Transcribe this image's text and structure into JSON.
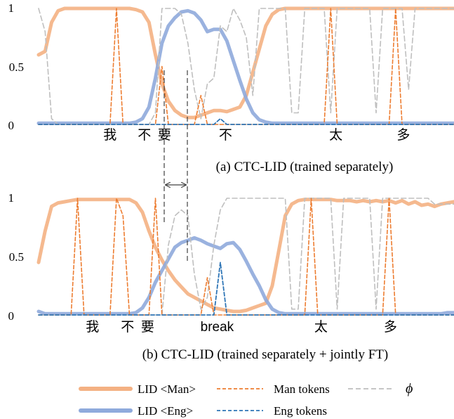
{
  "charts": [
    {
      "id": "a",
      "caption": "(a) CTC-LID (trained separately)",
      "yticks": [
        "1",
        "0.5",
        "0"
      ],
      "tokens": [
        {
          "label": "我",
          "frame": 11,
          "color": "#000000"
        },
        {
          "label": "不",
          "frame": 16.3,
          "color": "#000000"
        },
        {
          "label": "要",
          "frame": 19.4,
          "color": "#000000"
        },
        {
          "label": "不",
          "frame": 28.8,
          "color": "#cc0000"
        },
        {
          "label": "太",
          "frame": 45.8,
          "color": "#000000"
        },
        {
          "label": "多",
          "frame": 56.2,
          "color": "#000000"
        }
      ]
    },
    {
      "id": "b",
      "caption": "(b) CTC-LID (trained separately + jointly FT)",
      "yticks": [
        "1",
        "0.5",
        "0"
      ],
      "tokens": [
        {
          "label": "我",
          "frame": 8.3,
          "color": "#000000"
        },
        {
          "label": "不",
          "frame": 13.7,
          "color": "#000000"
        },
        {
          "label": "要",
          "frame": 16.8,
          "color": "#000000"
        },
        {
          "label": "break",
          "frame": 27.5,
          "color": "#2e75b6"
        },
        {
          "label": "太",
          "frame": 43.5,
          "color": "#000000"
        },
        {
          "label": "多",
          "frame": 54.2,
          "color": "#000000"
        }
      ]
    }
  ],
  "legend": [
    {
      "label": "LID <Man>",
      "color": "#f4b183",
      "style": "thick"
    },
    {
      "label": "Man tokens",
      "color": "#ed7d31",
      "style": "dashed"
    },
    {
      "label": "ϕ",
      "color": "#bfbfbf",
      "style": "dashed"
    },
    {
      "label": "LID <Eng>",
      "color": "#8faadc",
      "style": "thick"
    },
    {
      "label": "Eng tokens",
      "color": "#2e75b6",
      "style": "dashed"
    }
  ],
  "chart_data": [
    {
      "type": "line",
      "x": [
        0,
        1,
        2,
        3,
        4,
        5,
        6,
        7,
        8,
        9,
        10,
        11,
        12,
        13,
        14,
        15,
        16,
        17,
        18,
        19,
        20,
        21,
        22,
        23,
        24,
        25,
        26,
        27,
        28,
        29,
        30,
        31,
        32,
        33,
        34,
        35,
        36,
        37,
        38,
        39,
        40,
        41,
        42,
        43,
        44,
        45,
        46,
        47,
        48,
        49,
        50,
        51,
        52,
        53,
        54,
        55,
        56,
        57,
        58,
        59,
        60,
        61,
        62,
        63,
        64
      ],
      "ylim": [
        0,
        1
      ],
      "series": [
        {
          "name": "LID <Man>",
          "color": "#f4b183",
          "values": [
            0.6,
            0.63,
            0.88,
            0.98,
            1,
            1,
            1,
            1,
            1,
            1,
            1,
            1,
            1,
            1,
            1,
            0.99,
            0.97,
            0.88,
            0.6,
            0.35,
            0.2,
            0.12,
            0.08,
            0.06,
            0.06,
            0.08,
            0.1,
            0.12,
            0.12,
            0.11,
            0.13,
            0.15,
            0.25,
            0.45,
            0.65,
            0.85,
            0.95,
            0.99,
            1,
            1,
            1,
            1,
            1,
            1,
            1,
            1,
            1,
            1,
            1,
            1,
            1,
            1,
            1,
            1,
            1,
            1,
            1,
            1,
            1,
            1,
            1,
            1,
            1,
            1,
            1
          ]
        },
        {
          "name": "LID <Eng>",
          "color": "#8faadc",
          "values": [
            0.01,
            0.01,
            0.01,
            0.01,
            0.01,
            0.01,
            0.01,
            0.01,
            0.01,
            0.01,
            0.01,
            0.01,
            0.01,
            0.01,
            0.01,
            0.02,
            0.05,
            0.15,
            0.4,
            0.7,
            0.85,
            0.92,
            0.97,
            0.98,
            0.96,
            0.9,
            0.8,
            0.82,
            0.82,
            0.72,
            0.55,
            0.38,
            0.22,
            0.1,
            0.04,
            0.02,
            0.01,
            0.01,
            0.01,
            0.01,
            0.01,
            0.01,
            0.01,
            0.01,
            0.01,
            0.01,
            0.01,
            0.01,
            0.01,
            0.01,
            0.01,
            0.01,
            0.01,
            0.01,
            0.01,
            0.01,
            0.01,
            0.01,
            0.01,
            0.01,
            0.01,
            0.01,
            0.01,
            0.01,
            0.01
          ]
        },
        {
          "name": "Man tokens",
          "color": "#ed7d31",
          "values": [
            0,
            0,
            0,
            0,
            0,
            0,
            0,
            0,
            0,
            0,
            0,
            0,
            1,
            0,
            0,
            0,
            0,
            0,
            0,
            0.5,
            0,
            0,
            0,
            0,
            0,
            0.25,
            0,
            0,
            0,
            0,
            0,
            0,
            0,
            0,
            0,
            0,
            0,
            0,
            0,
            0,
            0,
            0,
            0,
            0,
            0,
            1,
            0,
            0,
            0,
            0,
            0,
            0,
            0,
            0,
            0,
            1,
            0,
            0,
            0,
            0,
            0,
            0,
            0,
            0,
            0
          ]
        },
        {
          "name": "Eng tokens",
          "color": "#2e75b6",
          "values": [
            0,
            0,
            0,
            0,
            0,
            0,
            0,
            0,
            0,
            0,
            0,
            0,
            0,
            0,
            0,
            0,
            0,
            0,
            0,
            0,
            0,
            0,
            0,
            0,
            0,
            0,
            0,
            0,
            0.05,
            0,
            0,
            0,
            0,
            0,
            0,
            0,
            0,
            0,
            0,
            0,
            0,
            0,
            0,
            0,
            0,
            0,
            0,
            0,
            0,
            0,
            0,
            0,
            0,
            0,
            0,
            0,
            0,
            0,
            0,
            0,
            0,
            0,
            0,
            0,
            0
          ]
        },
        {
          "name": "ϕ",
          "color": "#bfbfbf",
          "values": [
            1,
            0.8,
            0.05,
            0,
            0,
            0,
            0,
            0,
            0,
            0,
            0,
            0,
            0,
            0,
            0,
            0,
            0,
            0,
            0.1,
            1,
            1,
            1,
            0.95,
            0.7,
            0.3,
            0.05,
            0.35,
            0.4,
            0.85,
            0.8,
            1,
            0.9,
            0.75,
            0.25,
            1,
            1,
            1,
            1,
            1,
            0.1,
            0.1,
            1,
            1,
            1,
            1,
            0.1,
            1,
            1,
            1,
            1,
            1,
            1,
            0.1,
            1,
            1,
            1,
            1,
            0.3,
            1,
            1,
            1,
            1,
            1,
            1,
            1
          ]
        }
      ]
    },
    {
      "type": "line",
      "x": [
        0,
        1,
        2,
        3,
        4,
        5,
        6,
        7,
        8,
        9,
        10,
        11,
        12,
        13,
        14,
        15,
        16,
        17,
        18,
        19,
        20,
        21,
        22,
        23,
        24,
        25,
        26,
        27,
        28,
        29,
        30,
        31,
        32,
        33,
        34,
        35,
        36,
        37,
        38,
        39,
        40,
        41,
        42,
        43,
        44,
        45,
        46,
        47,
        48,
        49,
        50,
        51,
        52,
        53,
        54,
        55,
        56,
        57,
        58,
        59,
        60,
        61,
        62,
        63,
        64
      ],
      "ylim": [
        0,
        1
      ],
      "series": [
        {
          "name": "LID <Man>",
          "color": "#f4b183",
          "values": [
            0.45,
            0.72,
            0.93,
            0.96,
            0.97,
            0.98,
            0.99,
            0.99,
            0.99,
            0.99,
            0.99,
            0.99,
            0.99,
            0.99,
            0.99,
            0.96,
            0.88,
            0.72,
            0.58,
            0.47,
            0.38,
            0.3,
            0.24,
            0.18,
            0.15,
            0.12,
            0.09,
            0.06,
            0.05,
            0.04,
            0.03,
            0.03,
            0.04,
            0.06,
            0.08,
            0.1,
            0.25,
            0.55,
            0.85,
            0.95,
            0.98,
            0.99,
            0.99,
            0.99,
            0.99,
            0.99,
            0.98,
            0.98,
            0.98,
            0.97,
            0.98,
            0.97,
            0.98,
            0.97,
            0.98,
            0.96,
            0.98,
            0.95,
            0.97,
            0.94,
            0.95,
            0.93,
            0.95,
            0.96,
            0.97
          ]
        },
        {
          "name": "LID <Eng>",
          "color": "#8faadc",
          "values": [
            0.03,
            0.01,
            0.01,
            0.01,
            0.01,
            0.01,
            0.01,
            0.01,
            0.01,
            0.01,
            0.01,
            0.01,
            0.01,
            0.01,
            0.01,
            0.02,
            0.06,
            0.15,
            0.28,
            0.38,
            0.48,
            0.58,
            0.62,
            0.64,
            0.66,
            0.64,
            0.61,
            0.59,
            0.57,
            0.61,
            0.62,
            0.56,
            0.46,
            0.35,
            0.25,
            0.13,
            0.05,
            0.02,
            0.01,
            0.01,
            0.01,
            0.01,
            0.01,
            0.01,
            0.01,
            0.01,
            0.01,
            0.01,
            0.01,
            0.01,
            0.01,
            0.01,
            0.01,
            0.01,
            0.01,
            0.01,
            0.01,
            0.01,
            0.01,
            0.01,
            0.01,
            0.01,
            0.01,
            0.02,
            0.02
          ]
        },
        {
          "name": "Man tokens",
          "color": "#ed7d31",
          "values": [
            0,
            0,
            0,
            0,
            0,
            0,
            1,
            0,
            0,
            0,
            0,
            0,
            1,
            0.85,
            0,
            0,
            0,
            0,
            1,
            0,
            0,
            0,
            0,
            0,
            0,
            0,
            0.32,
            0,
            0,
            0,
            0,
            0,
            0,
            0,
            0,
            0,
            0,
            0,
            0,
            0,
            0,
            0,
            1,
            0,
            0,
            0,
            0,
            0,
            0,
            0,
            0,
            0,
            0,
            0,
            1,
            0,
            0,
            0,
            0,
            0,
            0,
            0,
            0,
            0,
            0
          ]
        },
        {
          "name": "Eng tokens",
          "color": "#2e75b6",
          "values": [
            0,
            0,
            0,
            0,
            0,
            0,
            0,
            0,
            0,
            0,
            0,
            0,
            0,
            0,
            0,
            0,
            0,
            0,
            0,
            0,
            0,
            0,
            0,
            0,
            0,
            0,
            0,
            0,
            0.45,
            0,
            0,
            0,
            0,
            0,
            0,
            0,
            0,
            0,
            0,
            0,
            0,
            0,
            0,
            0,
            0,
            0,
            0,
            0,
            0,
            0,
            0,
            0,
            0,
            0,
            0,
            0,
            0,
            0,
            0,
            0,
            0,
            0,
            0,
            0,
            0
          ]
        },
        {
          "name": "ϕ",
          "color": "#bfbfbf",
          "values": [
            0,
            0,
            0,
            0,
            0,
            0,
            0,
            0,
            0,
            0,
            0,
            0,
            0,
            0,
            0,
            0,
            0,
            0,
            0,
            0,
            0.6,
            0.85,
            0.9,
            0.85,
            0.35,
            0.05,
            0.15,
            0.6,
            0.9,
            1,
            1,
            1,
            1,
            1,
            1,
            1,
            1,
            1,
            1,
            0.05,
            0.05,
            1,
            1,
            1,
            1,
            1,
            0.05,
            1,
            1,
            1,
            1,
            1,
            0.05,
            1,
            1,
            1,
            1,
            1,
            1,
            1,
            1,
            0.95,
            0.95,
            0.95,
            0.95
          ]
        }
      ]
    }
  ]
}
